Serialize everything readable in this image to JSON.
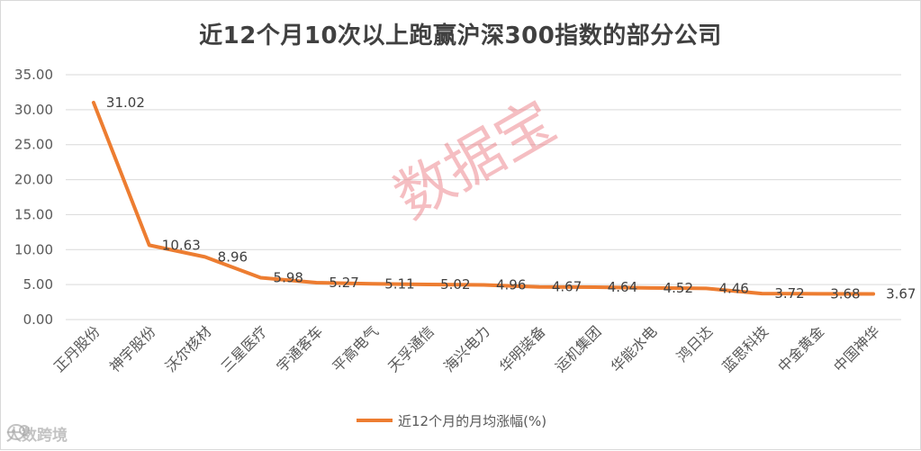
{
  "chart_data": {
    "type": "line",
    "title": "近12个月10次以上跑赢沪深300指数的部分公司",
    "categories": [
      "正丹股份",
      "神宇股份",
      "沃尔核材",
      "三星医疗",
      "宇通客车",
      "平高电气",
      "天孚通信",
      "海兴电力",
      "华明装备",
      "运机集团",
      "华能水电",
      "鸿日达",
      "蓝思科技",
      "中金黄金",
      "中国神华"
    ],
    "series": [
      {
        "name": "近12个月的月均涨幅(%)",
        "color": "#ed7d31",
        "values": [
          31.02,
          10.63,
          8.96,
          5.98,
          5.27,
          5.11,
          5.02,
          4.96,
          4.67,
          4.64,
          4.52,
          4.46,
          3.72,
          3.68,
          3.67
        ],
        "labels": [
          "31.02",
          "10.63",
          "8.96",
          "5.98",
          "5.27",
          "5.11",
          "5.02",
          "4.96",
          "4.67",
          "4.64",
          "4.52",
          "4.46",
          "3.72",
          "3.68",
          "3.67"
        ]
      }
    ],
    "ylim": [
      0,
      35
    ],
    "yticks": [
      0,
      5,
      10,
      15,
      20,
      25,
      30,
      35
    ],
    "ytick_labels": [
      "0.00",
      "5.00",
      "10.00",
      "15.00",
      "20.00",
      "25.00",
      "30.00",
      "35.00"
    ],
    "grid": true,
    "legend": "bottom"
  },
  "watermark": "数据宝",
  "logo_text": "大数跨境"
}
